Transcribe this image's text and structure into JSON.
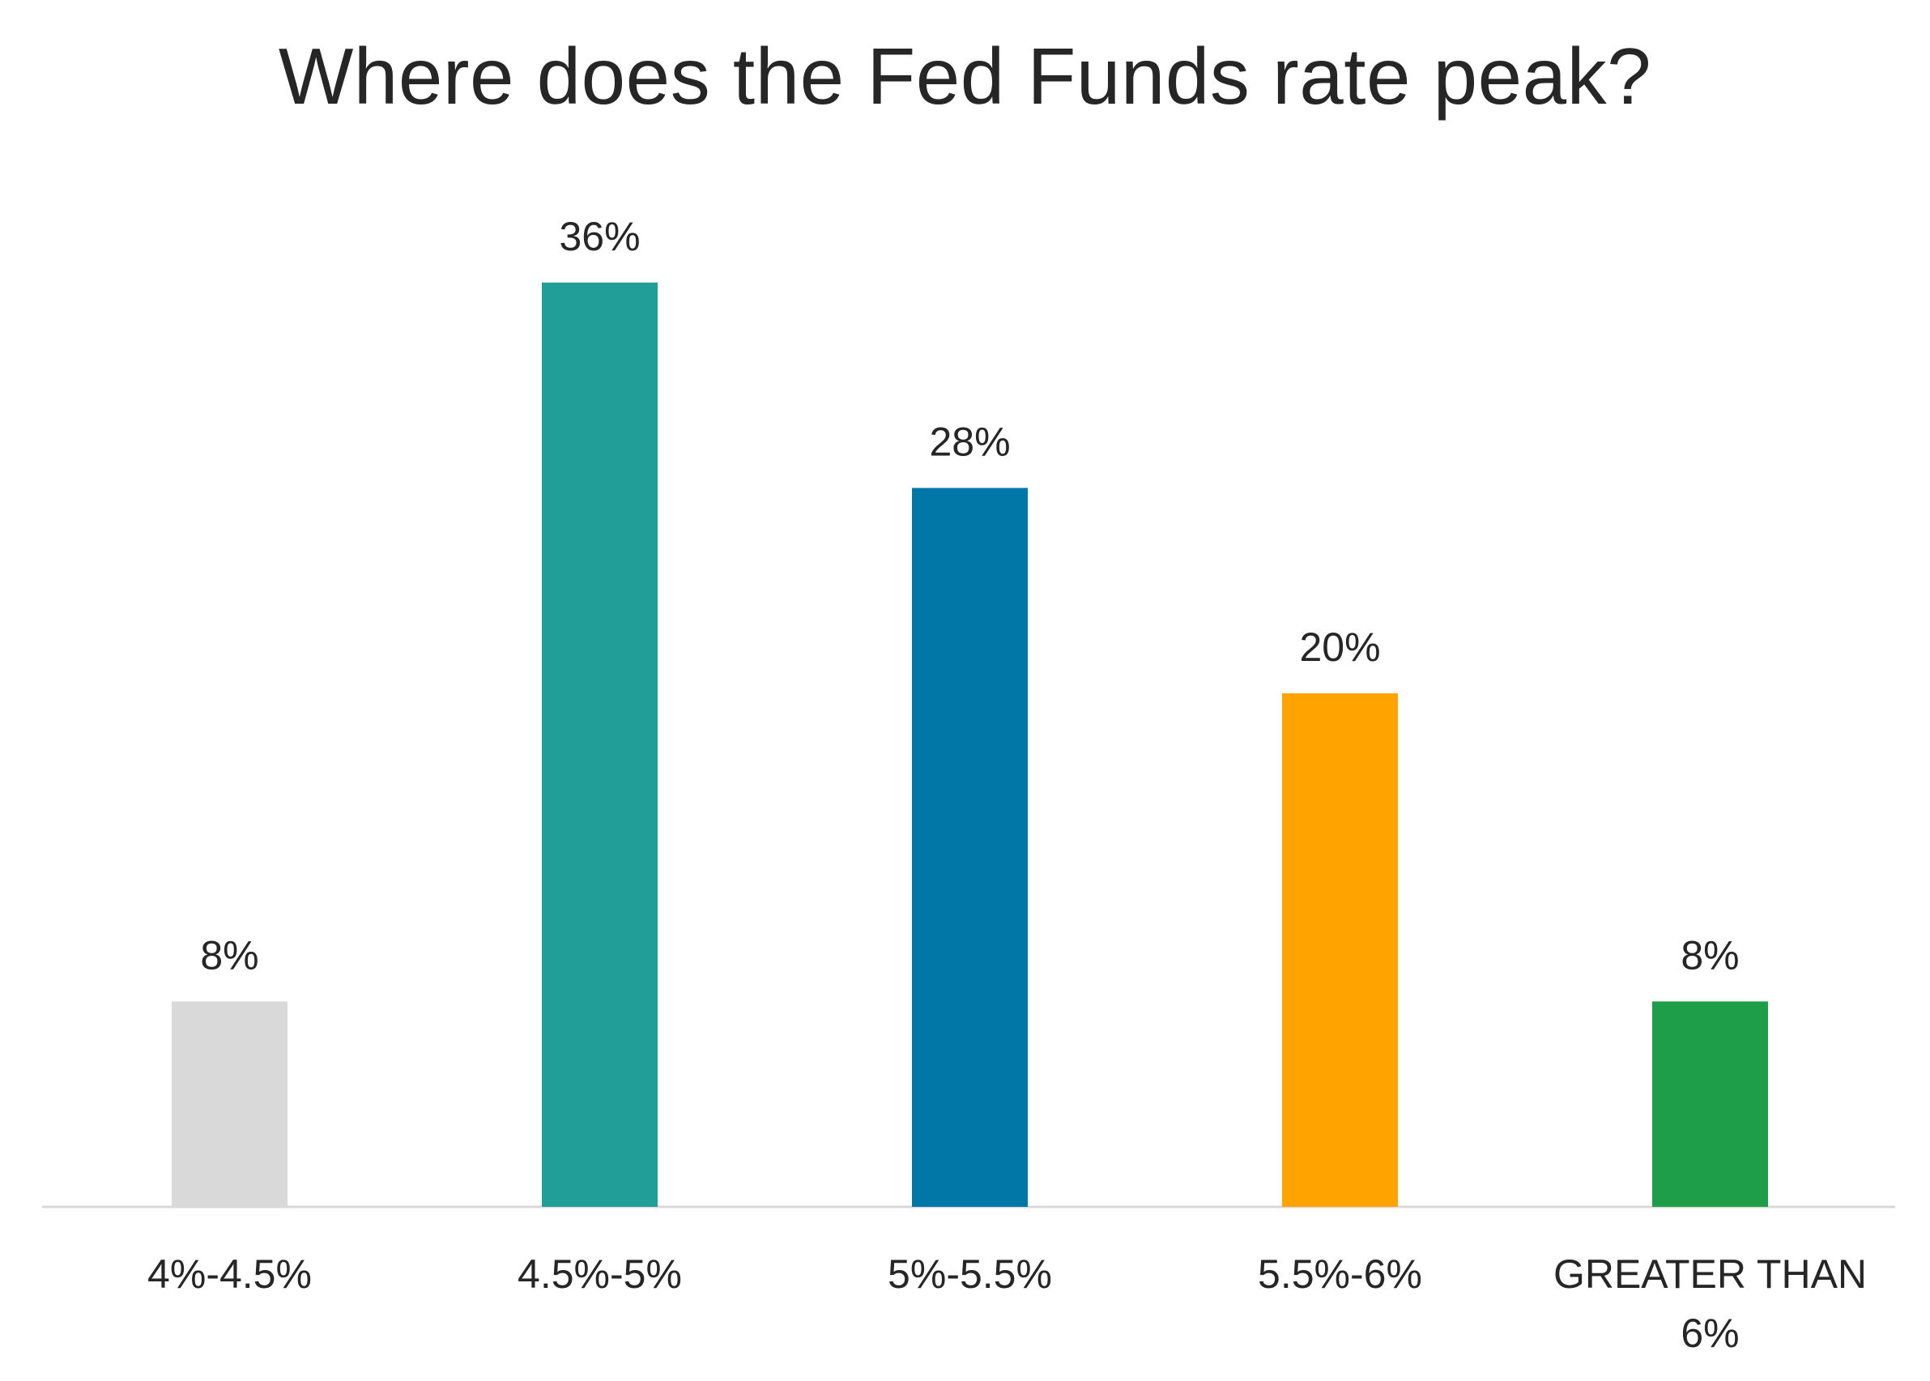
{
  "chart_data": {
    "type": "bar",
    "title": "Where does the Fed Funds rate peak?",
    "categories": [
      "4%-4.5%",
      "4.5%-5%",
      "5%-5.5%",
      "5.5%-6%",
      "GREATER THAN 6%"
    ],
    "category_lines": [
      [
        "4%-4.5%"
      ],
      [
        "4.5%-5%"
      ],
      [
        "5%-5.5%"
      ],
      [
        "5.5%-6%"
      ],
      [
        "GREATER THAN",
        "6%"
      ]
    ],
    "values": [
      8,
      36,
      28,
      20,
      8
    ],
    "data_labels": [
      "8%",
      "36%",
      "28%",
      "20%",
      "8%"
    ],
    "bar_colors": [
      "#d9d9d9",
      "#229e98",
      "#0177a7",
      "#ffa300",
      "#1f9e4a"
    ],
    "axis_color": "#d9d9d9",
    "xlabel": "",
    "ylabel": "",
    "ylim": [
      0,
      36
    ],
    "grid": false,
    "legend": "none"
  }
}
